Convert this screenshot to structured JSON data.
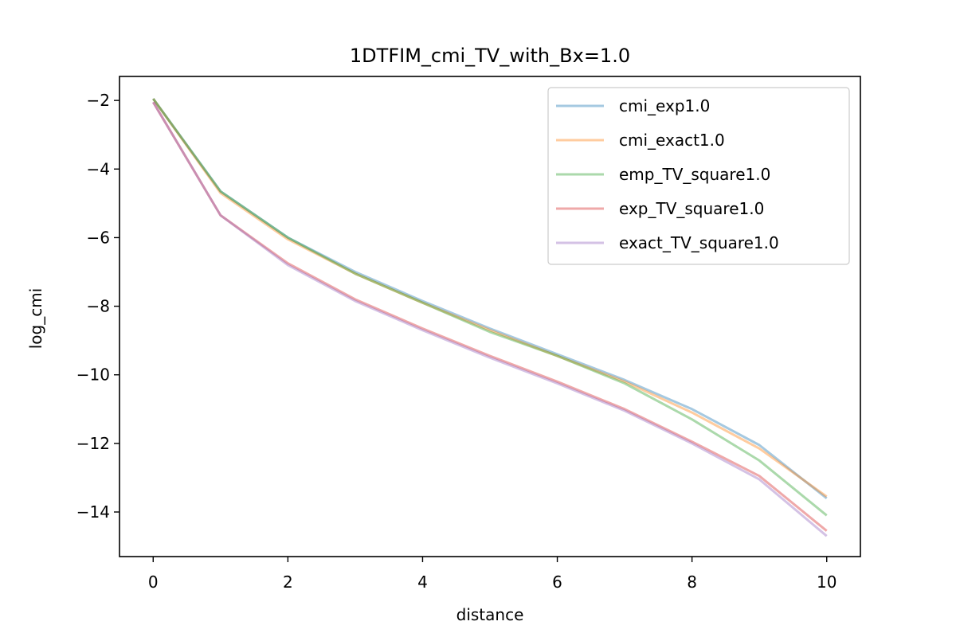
{
  "chart_data": {
    "type": "line",
    "title": "1DTFIM_cmi_TV_with_Bx=1.0",
    "xlabel": "distance",
    "ylabel": "log_cmi",
    "xlim": [
      -0.5,
      10.5
    ],
    "ylim": [
      -15.3,
      -1.3
    ],
    "xticks": [
      0,
      2,
      4,
      6,
      8,
      10
    ],
    "yticks": [
      -2,
      -4,
      -6,
      -8,
      -10,
      -12,
      -14
    ],
    "xtick_labels": [
      "0",
      "2",
      "4",
      "6",
      "8",
      "10"
    ],
    "ytick_labels": [
      "−2",
      "−4",
      "−6",
      "−8",
      "−10",
      "−12",
      "−14"
    ],
    "grid": false,
    "legend_position": "top-right",
    "x": [
      0,
      1,
      2,
      3,
      4,
      5,
      6,
      7,
      8,
      9,
      10
    ],
    "series": [
      {
        "name": "cmi_exp1.0",
        "color": "#1f77b4",
        "values": [
          -1.95,
          -4.65,
          -6.0,
          -7.0,
          -7.85,
          -8.65,
          -9.4,
          -10.15,
          -11.0,
          -12.05,
          -13.6
        ]
      },
      {
        "name": "cmi_exact1.0",
        "color": "#ff7f0e",
        "values": [
          -1.95,
          -4.7,
          -6.05,
          -7.05,
          -7.9,
          -8.7,
          -9.45,
          -10.2,
          -11.1,
          -12.15,
          -13.55
        ]
      },
      {
        "name": "emp_TV_square1.0",
        "color": "#2ca02c",
        "values": [
          -1.95,
          -4.65,
          -6.0,
          -7.05,
          -7.9,
          -8.75,
          -9.45,
          -10.25,
          -11.3,
          -12.5,
          -14.1
        ]
      },
      {
        "name": "exp_TV_square1.0",
        "color": "#d62728",
        "values": [
          -2.05,
          -5.35,
          -6.75,
          -7.8,
          -8.65,
          -9.45,
          -10.2,
          -11.0,
          -11.95,
          -12.95,
          -14.55
        ]
      },
      {
        "name": "exact_TV_square1.0",
        "color": "#9467bd",
        "values": [
          -2.05,
          -5.35,
          -6.8,
          -7.85,
          -8.7,
          -9.5,
          -10.25,
          -11.05,
          -12.0,
          -13.05,
          -14.7
        ]
      }
    ]
  }
}
